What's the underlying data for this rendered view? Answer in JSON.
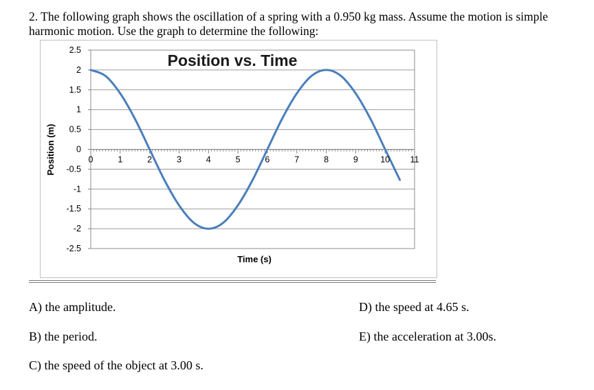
{
  "question": {
    "text": "2. The following graph shows the oscillation of a spring with a 0.950 kg mass. Assume the motion is simple harmonic motion. Use the graph to determine the following:"
  },
  "parts": {
    "a": "A) the amplitude.",
    "b": "B) the period.",
    "c": "C) the speed of the object at 3.00 s.",
    "d": "D) the speed at 4.65 s.",
    "e": "E) the acceleration at 3.00s."
  },
  "chart_data": {
    "type": "line",
    "title": "Position vs. Time",
    "xlabel": "Time (s)",
    "ylabel": "Position (m)",
    "xlim": [
      0,
      11
    ],
    "ylim": [
      -2.5,
      2.5
    ],
    "x_ticks": [
      0,
      1,
      2,
      3,
      4,
      5,
      6,
      7,
      8,
      9,
      10,
      11
    ],
    "y_ticks": [
      2.5,
      2,
      1.5,
      1,
      0.5,
      0,
      -0.5,
      -1,
      -1.5,
      -2,
      -2.5
    ],
    "x_tick_labels": [
      "0",
      "1",
      "2",
      "3",
      "4",
      "5",
      "6",
      "7",
      "8",
      "9",
      "10",
      "11"
    ],
    "y_tick_labels": [
      "2.5",
      "2",
      "1.5",
      "1",
      "0.5",
      "0",
      "-0.5",
      "-1",
      "-1.5",
      "-2",
      "-2.5"
    ],
    "grid": true,
    "legend": "none",
    "line_color": "#4a7ebb",
    "series": [
      {
        "x": [
          0,
          0.5,
          1,
          1.5,
          2,
          2.5,
          3,
          3.5,
          4,
          4.5,
          5,
          5.5,
          6,
          6.5,
          7,
          7.5,
          8,
          8.5,
          9,
          9.5,
          10,
          10.5
        ],
        "values": [
          2.0,
          1.85,
          1.41,
          0.77,
          0.0,
          -0.77,
          -1.41,
          -1.85,
          -2.0,
          -1.85,
          -1.41,
          -0.77,
          0.0,
          0.77,
          1.41,
          1.85,
          2.0,
          1.85,
          1.41,
          0.77,
          0.0,
          -0.77
        ]
      }
    ]
  }
}
